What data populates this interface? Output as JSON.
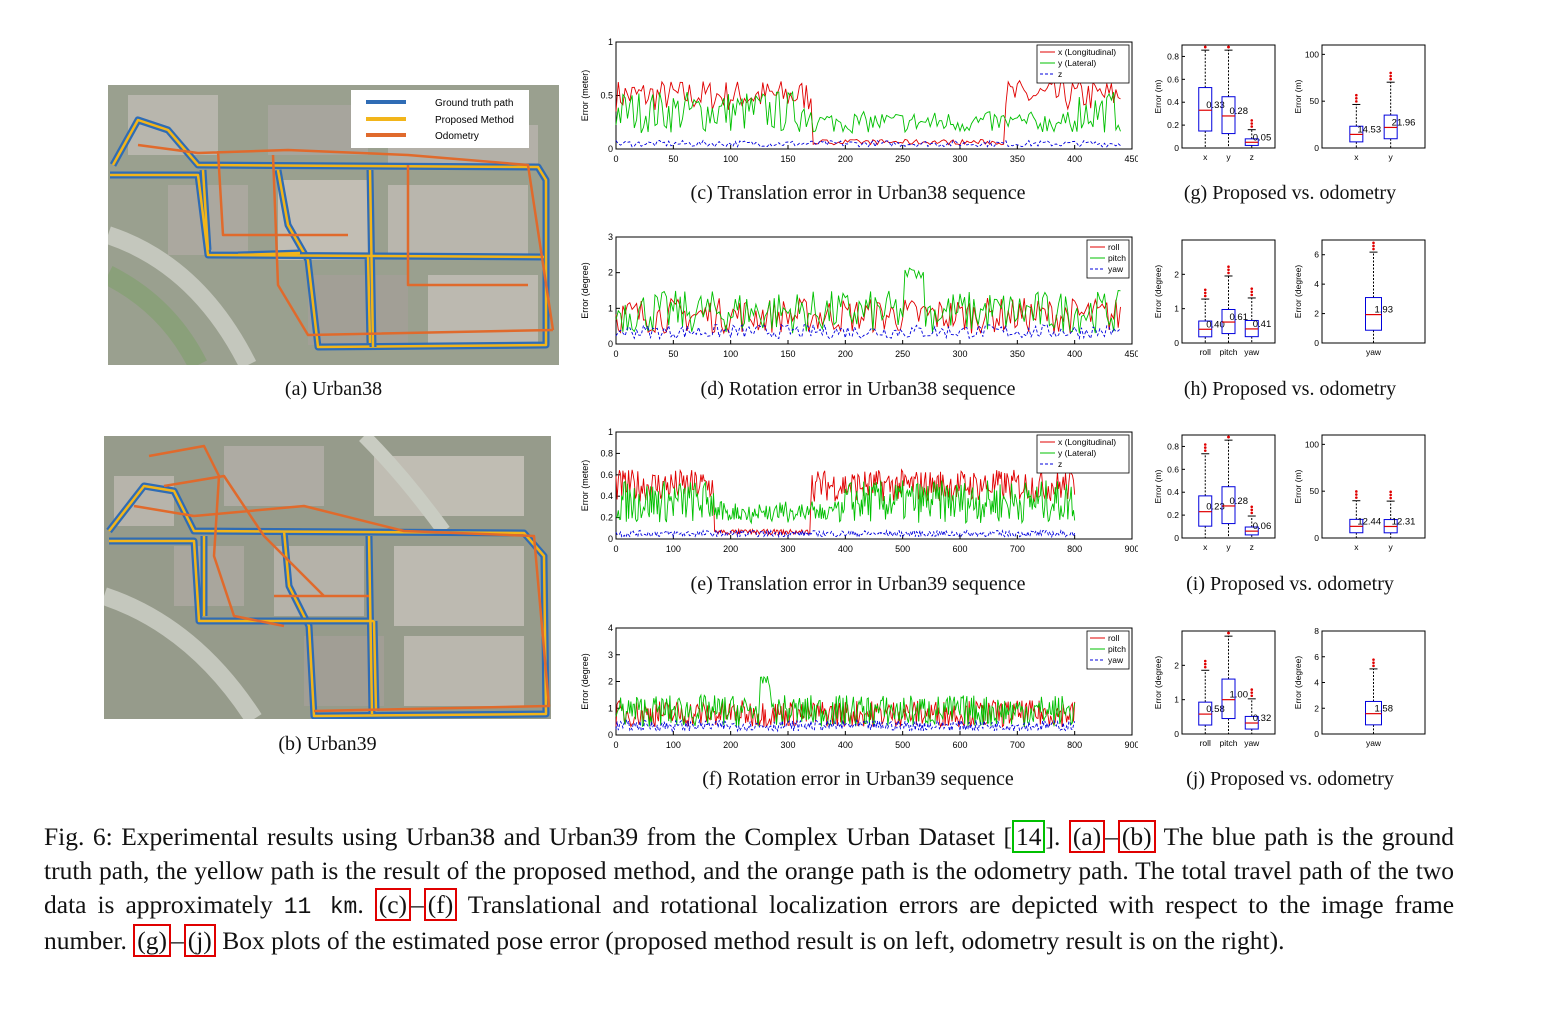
{
  "maps": [
    {
      "id": "a",
      "caption": "(a)  Urban38"
    },
    {
      "id": "b",
      "caption": "(b)  Urban39"
    }
  ],
  "legend_map": {
    "gt": "Ground truth path",
    "proposed": "Proposed Method",
    "odometry": "Odometry"
  },
  "colors": {
    "gt": "#2f6cb5",
    "proposed": "#f2b51a",
    "odometry": "#e06a2c",
    "red": "#e00000",
    "green": "#00c000",
    "blue": "#0000dd"
  },
  "line_plots": [
    {
      "id": "c",
      "caption": "(c)  Translation error in Urban38 sequence",
      "ylabel": "Error (meter)",
      "xmax": 450,
      "ymax": 1,
      "xticks": [
        "0",
        "50",
        "100",
        "150",
        "200",
        "250",
        "300",
        "350",
        "400",
        "450"
      ],
      "yticks": [
        "0",
        "0.5",
        "1"
      ],
      "legend": [
        "x (Longitudinal)",
        "y (Lateral)",
        "z"
      ]
    },
    {
      "id": "d",
      "caption": "(d)  Rotation error in Urban38 sequence",
      "ylabel": "Error (degree)",
      "xmax": 450,
      "ymax": 3,
      "xticks": [
        "0",
        "50",
        "100",
        "150",
        "200",
        "250",
        "300",
        "350",
        "400",
        "450"
      ],
      "yticks": [
        "0",
        "1",
        "2",
        "3"
      ],
      "legend": [
        "roll",
        "pitch",
        "yaw"
      ]
    },
    {
      "id": "e",
      "caption": "(e)  Translation error in Urban39 sequence",
      "ylabel": "Error (meter)",
      "xmax": 900,
      "ymax": 1,
      "xticks": [
        "0",
        "100",
        "200",
        "300",
        "400",
        "500",
        "600",
        "700",
        "800",
        "900"
      ],
      "yticks": [
        "0",
        "0.2",
        "0.4",
        "0.6",
        "0.8",
        "1"
      ],
      "legend": [
        "x (Longitudinal)",
        "y (Lateral)",
        "z"
      ]
    },
    {
      "id": "f",
      "caption": "(f)  Rotation error in Urban39 sequence",
      "ylabel": "Error (degree)",
      "xmax": 900,
      "ymax": 4,
      "xticks": [
        "0",
        "100",
        "200",
        "300",
        "400",
        "500",
        "600",
        "700",
        "800",
        "900"
      ],
      "yticks": [
        "0",
        "1",
        "2",
        "3",
        "4"
      ],
      "legend": [
        "roll",
        "pitch",
        "yaw"
      ]
    }
  ],
  "box_captions": {
    "g": "(g)  Proposed vs. odometry",
    "h": "(h)  Proposed vs. odometry",
    "i": "(i)  Proposed vs. odometry",
    "j": "(j)  Proposed vs. odometry"
  },
  "chart_data": [
    {
      "type": "box",
      "panel": "g-left",
      "ylabel": "Error (m)",
      "ylim": [
        0,
        0.9
      ],
      "yticks": [
        "0",
        "0.2",
        "0.4",
        "0.6",
        "0.8"
      ],
      "categories": [
        "x",
        "y",
        "z"
      ],
      "medians": [
        0.33,
        0.28,
        0.05
      ],
      "labels": [
        "0.33",
        "0.28",
        "0.05"
      ]
    },
    {
      "type": "box",
      "panel": "g-right",
      "ylabel": "Error (m)",
      "ylim": [
        0,
        110
      ],
      "yticks": [
        "0",
        "50",
        "100"
      ],
      "categories": [
        "x",
        "y"
      ],
      "medians": [
        14.53,
        21.96
      ],
      "labels": [
        "14.53",
        "21.96"
      ]
    },
    {
      "type": "box",
      "panel": "h-left",
      "ylabel": "Error (degree)",
      "ylim": [
        0,
        3
      ],
      "yticks": [
        "0",
        "1",
        "2"
      ],
      "categories": [
        "roll",
        "pitch",
        "yaw"
      ],
      "medians": [
        0.4,
        0.61,
        0.41
      ],
      "labels": [
        "0.40",
        "0.61",
        "0.41"
      ]
    },
    {
      "type": "box",
      "panel": "h-right",
      "ylabel": "Error (degree)",
      "ylim": [
        0,
        7
      ],
      "yticks": [
        "0",
        "2",
        "4",
        "6"
      ],
      "categories": [
        "yaw"
      ],
      "medians": [
        1.93
      ],
      "labels": [
        "1.93"
      ]
    },
    {
      "type": "box",
      "panel": "i-left",
      "ylabel": "Error (m)",
      "ylim": [
        0,
        0.9
      ],
      "yticks": [
        "0",
        "0.2",
        "0.4",
        "0.6",
        "0.8"
      ],
      "categories": [
        "x",
        "y",
        "z"
      ],
      "medians": [
        0.23,
        0.28,
        0.06
      ],
      "labels": [
        "0.23",
        "0.28",
        "0.06"
      ]
    },
    {
      "type": "box",
      "panel": "i-right",
      "ylabel": "Error (m)",
      "ylim": [
        0,
        110
      ],
      "yticks": [
        "0",
        "50",
        "100"
      ],
      "categories": [
        "x",
        "y"
      ],
      "medians": [
        12.44,
        12.31
      ],
      "labels": [
        "12.44",
        "12.31"
      ]
    },
    {
      "type": "box",
      "panel": "j-left",
      "ylabel": "Error (degree)",
      "ylim": [
        0,
        3
      ],
      "yticks": [
        "0",
        "1",
        "2"
      ],
      "categories": [
        "roll",
        "pitch",
        "yaw"
      ],
      "medians": [
        0.58,
        1.0,
        0.32
      ],
      "labels": [
        "0.58",
        "1.00",
        "0.32"
      ]
    },
    {
      "type": "box",
      "panel": "j-right",
      "ylabel": "Error (degree)",
      "ylim": [
        0,
        8
      ],
      "yticks": [
        "0",
        "2",
        "4",
        "6",
        "8"
      ],
      "categories": [
        "yaw"
      ],
      "medians": [
        1.58
      ],
      "labels": [
        "1.58"
      ]
    }
  ],
  "caption": {
    "p1": "Fig. 6: Experimental results using Urban38 and Urban39 from the Complex Urban Dataset ",
    "cite": "14",
    "p2": ". ",
    "r_a": "(a)",
    "dash1": "–",
    "r_b": "(b)",
    "p3": " The blue path is the ground truth path, the yellow path is the result of the proposed method, and the orange path is the odometry path. The total travel path of the two data is approximately ",
    "km": "11 km",
    "p4": ". ",
    "r_c": "(c)",
    "dash2": "–",
    "r_f": "(f)",
    "p5": " Translational and rotational localization errors are depicted with respect to the image frame number. ",
    "r_g": "(g)",
    "dash3": "–",
    "r_j": "(j)",
    "p6": " Box plots of the estimated pose error (proposed method result is on left, odometry result is on the right)."
  }
}
